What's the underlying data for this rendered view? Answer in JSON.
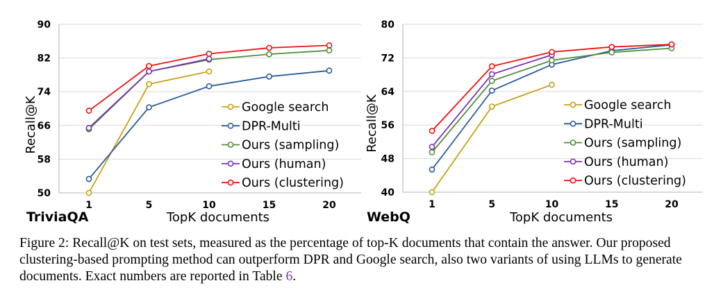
{
  "chart_data": [
    {
      "type": "line",
      "dataset_label": "TriviaQA",
      "xlabel": "TopK documents",
      "ylabel": "Recall@K",
      "x": [
        "1",
        "5",
        "10",
        "15",
        "20"
      ],
      "ylim": [
        50,
        90
      ],
      "yticks": [
        50,
        58,
        66,
        74,
        82,
        90
      ],
      "grid": "horizontal",
      "legend_position": "bottom-right",
      "series": [
        {
          "name": "Google search",
          "color": "#c8a013",
          "values": [
            50.0,
            75.8,
            78.8,
            null,
            null
          ]
        },
        {
          "name": "DPR-Multi",
          "color": "#2a5b9a",
          "values": [
            53.3,
            70.3,
            75.3,
            77.6,
            79.0
          ]
        },
        {
          "name": "Ours (sampling)",
          "color": "#4e8f38",
          "values": [
            65.1,
            78.8,
            81.6,
            82.9,
            83.8
          ]
        },
        {
          "name": "Ours (human)",
          "color": "#7a33b0",
          "values": [
            65.4,
            78.8,
            81.8,
            null,
            null
          ]
        },
        {
          "name": "Ours (clustering)",
          "color": "#ee1111",
          "values": [
            69.5,
            80.1,
            83.0,
            84.4,
            85.0
          ]
        }
      ]
    },
    {
      "type": "line",
      "dataset_label": "WebQ",
      "xlabel": "TopK documents",
      "ylabel": "Recall@K",
      "x": [
        "1",
        "5",
        "10",
        "15",
        "20"
      ],
      "ylim": [
        40,
        80
      ],
      "yticks": [
        40,
        48,
        56,
        64,
        72,
        80
      ],
      "grid": "horizontal",
      "legend_position": "bottom-right",
      "series": [
        {
          "name": "Google search",
          "color": "#c8a013",
          "values": [
            40.0,
            60.4,
            65.6,
            null,
            null
          ]
        },
        {
          "name": "DPR-Multi",
          "color": "#2a5b9a",
          "values": [
            45.4,
            64.2,
            70.4,
            73.7,
            75.1
          ]
        },
        {
          "name": "Ours (sampling)",
          "color": "#4e8f38",
          "values": [
            49.5,
            66.5,
            71.4,
            73.3,
            74.3
          ]
        },
        {
          "name": "Ours (human)",
          "color": "#7a33b0",
          "values": [
            50.8,
            68.1,
            72.7,
            null,
            null
          ]
        },
        {
          "name": "Ours (clustering)",
          "color": "#ee1111",
          "values": [
            54.6,
            70.0,
            73.4,
            74.6,
            75.2
          ]
        }
      ]
    }
  ],
  "caption": {
    "prefix": "Figure 2: Recall@K on test sets, measured as the percentage of top-K documents that contain the answer. Our proposed clustering-based prompting method can outperform DPR and Google search, also two variants of using LLMs to generate documents. Exact numbers are reported in Table ",
    "ref": "6",
    "suffix": "."
  }
}
